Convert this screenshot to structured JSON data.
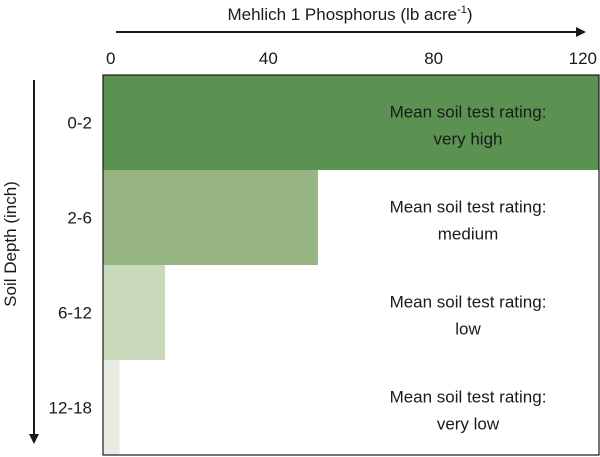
{
  "chart_data": {
    "type": "bar",
    "orientation": "horizontal",
    "title": "",
    "xlabel": "Mehlich 1 Phosphorus (lb acre",
    "xlabel_superscript": "-1",
    "xlabel_suffix": ")",
    "ylabel": "Soil Depth (inch)",
    "xlim": [
      0,
      120
    ],
    "x_ticks": [
      "0",
      "40",
      "80",
      "120"
    ],
    "x_axis_position": "top",
    "grid": false,
    "categories": [
      "0-2",
      "2-6",
      "6-12",
      "12-18"
    ],
    "values": [
      120,
      52,
      15,
      4
    ],
    "colors": [
      "#5b9251",
      "#97b582",
      "#c8d9bc",
      "#e8ebe3"
    ],
    "annotations": [
      [
        "Mean soil test rating:",
        "very high"
      ],
      [
        "Mean soil test rating:",
        "medium"
      ],
      [
        "Mean soil test rating:",
        "low"
      ],
      [
        "Mean soil test rating:",
        "very low"
      ]
    ]
  }
}
